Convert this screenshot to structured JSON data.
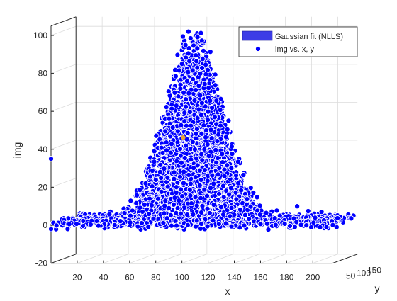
{
  "chart_data": {
    "type": "scatter",
    "title": "",
    "xlabel": "x",
    "ylabel": "y",
    "zlabel": "img",
    "xlim": [
      0,
      215
    ],
    "ylim": [
      0,
      160
    ],
    "zlim": [
      -20,
      100
    ],
    "x_ticks": [
      "20",
      "40",
      "60",
      "80",
      "100",
      "120",
      "140",
      "160",
      "180",
      "200"
    ],
    "y_ticks": [
      "50",
      "100",
      "150"
    ],
    "z_ticks": [
      "-20",
      "0",
      "20",
      "40",
      "60",
      "80",
      "100"
    ],
    "grid": true,
    "legend_position": "top-right",
    "series": [
      {
        "name": "Gaussian fit (NLLS)",
        "kind": "surface",
        "color": "#3c3ce6"
      },
      {
        "name": "img vs. x, y",
        "kind": "points",
        "color": "#0000ff"
      }
    ],
    "peak_x": 100,
    "peak_z": 100,
    "noise_floor": 0,
    "outliers": [
      {
        "x": 0,
        "z": 35
      },
      {
        "x": 0,
        "z": -2
      },
      {
        "x": 105,
        "z": 102
      },
      {
        "x": 188,
        "z": 10
      }
    ]
  },
  "colors": {
    "marker_fill": "#0000ff",
    "marker_edge": "#ffffff",
    "surface_fill": "#3c3ce6",
    "axis": "#262626",
    "grid": "#dcdcdc",
    "fit_peak": "#e8a33a"
  }
}
